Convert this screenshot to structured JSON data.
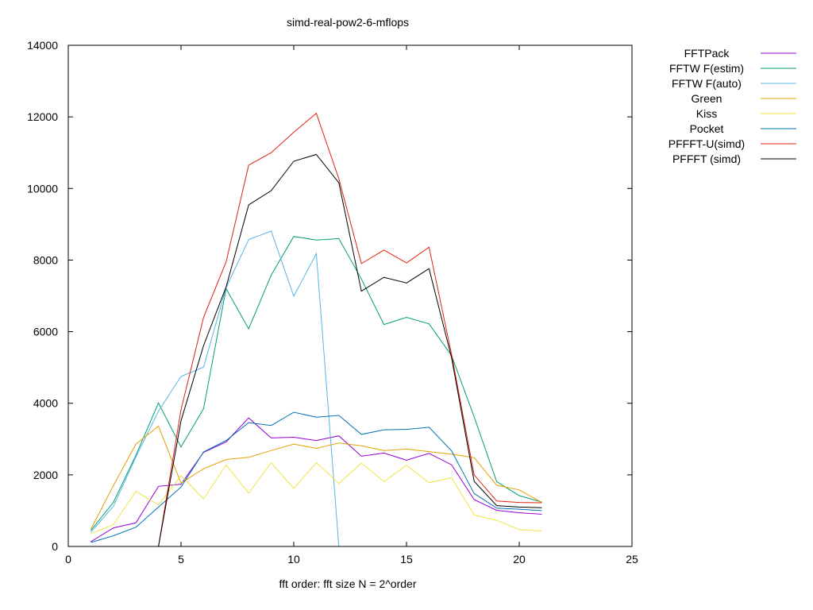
{
  "chart_data": {
    "type": "line",
    "title": "simd-real-pow2-6-mflops",
    "xlabel": "fft order: fft size N = 2^order",
    "ylabel": "",
    "xlim": [
      0,
      25
    ],
    "ylim": [
      0,
      14000
    ],
    "xticks": [
      0,
      5,
      10,
      15,
      20,
      25
    ],
    "yticks": [
      0,
      2000,
      4000,
      6000,
      8000,
      10000,
      12000,
      14000
    ],
    "grid": false,
    "legend_position": "outside-top-right",
    "series": [
      {
        "name": "FFTPack",
        "color": "#9400d3",
        "x": [
          1,
          2,
          3,
          4,
          5,
          6,
          7,
          8,
          9,
          10,
          11,
          12,
          13,
          14,
          15,
          16,
          17,
          18,
          19,
          20,
          21
        ],
        "y": [
          130,
          520,
          660,
          1680,
          1740,
          2630,
          2920,
          3590,
          3030,
          3050,
          2960,
          3090,
          2520,
          2610,
          2410,
          2600,
          2280,
          1310,
          1010,
          940,
          900
        ]
      },
      {
        "name": "FFTW F(estim)",
        "color": "#009e73",
        "x": [
          1,
          2,
          3,
          4,
          5,
          6,
          7,
          8,
          9,
          10,
          11,
          12,
          13,
          14,
          15,
          16,
          17,
          18,
          19,
          20,
          21
        ],
        "y": [
          450,
          1230,
          2550,
          4010,
          2780,
          3850,
          7200,
          6080,
          7580,
          8660,
          8560,
          8600,
          7470,
          6200,
          6400,
          6220,
          5330,
          3620,
          1810,
          1420,
          1240
        ]
      },
      {
        "name": "FFTW F(auto)",
        "color": "#56b4e9",
        "x": [
          1,
          2,
          3,
          4,
          5,
          6,
          7,
          8,
          9,
          10,
          11,
          12
        ],
        "y": [
          400,
          1120,
          2500,
          3780,
          4750,
          5010,
          7230,
          8570,
          8810,
          6990,
          8180,
          0
        ]
      },
      {
        "name": "Green",
        "color": "#e69f00",
        "x": [
          1,
          2,
          3,
          4,
          5,
          6,
          7,
          8,
          9,
          10,
          11,
          12,
          13,
          14,
          15,
          16,
          17,
          18,
          19,
          20,
          21
        ],
        "y": [
          480,
          1700,
          2860,
          3360,
          1770,
          2170,
          2430,
          2490,
          2680,
          2860,
          2740,
          2890,
          2810,
          2680,
          2720,
          2650,
          2580,
          2480,
          1710,
          1580,
          1230
        ]
      },
      {
        "name": "Kiss",
        "color": "#f0e442",
        "x": [
          1,
          2,
          3,
          4,
          5,
          6,
          7,
          8,
          9,
          10,
          11,
          12,
          13,
          14,
          15,
          16,
          17,
          18,
          19,
          20,
          21
        ],
        "y": [
          350,
          610,
          1540,
          1160,
          1980,
          1330,
          2280,
          1490,
          2340,
          1620,
          2340,
          1760,
          2330,
          1810,
          2270,
          1780,
          1920,
          880,
          730,
          470,
          430
        ]
      },
      {
        "name": "Pocket",
        "color": "#0072b2",
        "x": [
          1,
          2,
          3,
          4,
          5,
          6,
          7,
          8,
          9,
          10,
          11,
          12,
          13,
          14,
          15,
          16,
          17,
          18,
          19,
          20,
          21
        ],
        "y": [
          110,
          300,
          540,
          1100,
          1660,
          2640,
          2960,
          3460,
          3380,
          3750,
          3610,
          3660,
          3130,
          3260,
          3270,
          3330,
          2670,
          1480,
          1070,
          1040,
          1000
        ]
      },
      {
        "name": "PFFFT-U(simd)",
        "color": "#e51e10",
        "x": [
          4,
          5,
          6,
          7,
          8,
          9,
          10,
          11,
          12,
          13,
          14,
          15,
          16,
          17,
          18,
          19,
          20,
          21
        ],
        "y": [
          0,
          3820,
          6400,
          7950,
          10650,
          11000,
          11570,
          12100,
          10270,
          7900,
          8280,
          7920,
          8360,
          5360,
          2000,
          1270,
          1230,
          1220
        ]
      },
      {
        "name": "PFFFT (simd)",
        "color": "#000000",
        "x": [
          4,
          5,
          6,
          7,
          8,
          9,
          10,
          11,
          12,
          13,
          14,
          15,
          16,
          17,
          18,
          19,
          20,
          21
        ],
        "y": [
          0,
          3510,
          5610,
          7250,
          9540,
          9940,
          10760,
          10950,
          10160,
          7130,
          7520,
          7360,
          7760,
          5270,
          1820,
          1140,
          1100,
          1080
        ]
      }
    ]
  }
}
